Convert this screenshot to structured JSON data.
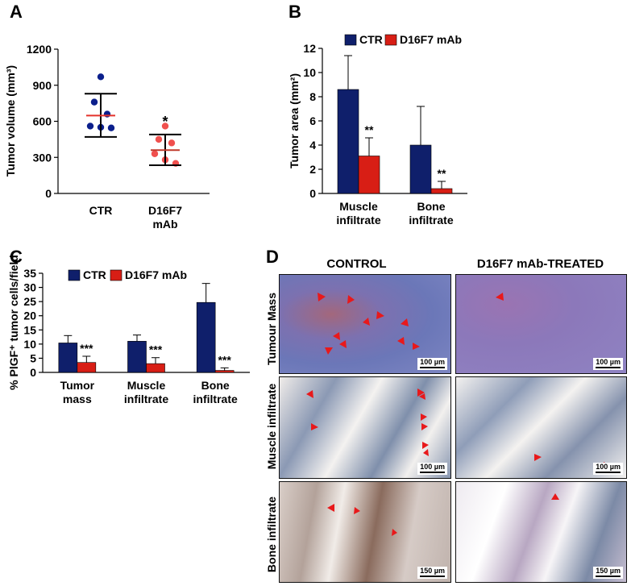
{
  "panels": [
    {
      "letter": "A"
    },
    {
      "letter": "B"
    },
    {
      "letter": "C"
    },
    {
      "letter": "D"
    }
  ],
  "chart_data": [
    {
      "id": "A",
      "type": "scatter",
      "ylabel": "Tumor volume (mm³)",
      "ylim": [
        0,
        1200
      ],
      "yticks": [
        "0",
        "300",
        "600",
        "900",
        "1200"
      ],
      "groups": [
        {
          "name": "CTR",
          "color": "#0b1f8c",
          "points": [
            970,
            760,
            660,
            560,
            550,
            545
          ],
          "mean": 648,
          "upper": 830,
          "lower": 470,
          "sig": ""
        },
        {
          "name": "D16F7\nmAb",
          "color": "#f0504e",
          "points": [
            560,
            450,
            420,
            330,
            280,
            250
          ],
          "mean": 360,
          "upper": 490,
          "lower": 235,
          "sig": "*"
        }
      ]
    },
    {
      "id": "B",
      "type": "bar",
      "ylabel": "Tumor area (mm²)",
      "ylim": [
        0,
        12
      ],
      "yticks": [
        "0",
        "2",
        "4",
        "6",
        "8",
        "10",
        "12"
      ],
      "categories": [
        "Muscle\ninfiltrate",
        "Bone\ninfiltrate"
      ],
      "series": [
        {
          "name": "CTR",
          "color": "#0f1f6b",
          "values": [
            8.6,
            4.0
          ],
          "errors": [
            2.8,
            3.2
          ],
          "sig": [
            "",
            ""
          ]
        },
        {
          "name": "D16F7 mAb",
          "color": "#d81e15",
          "values": [
            3.1,
            0.4
          ],
          "errors": [
            1.5,
            0.6
          ],
          "sig": [
            "**",
            "**"
          ]
        }
      ],
      "legend": "top"
    },
    {
      "id": "C",
      "type": "bar",
      "ylabel": "% PlGF⁺ tumor cells/field",
      "ylim": [
        0,
        35
      ],
      "yticks": [
        "0",
        "5",
        "10",
        "15",
        "20",
        "25",
        "30",
        "35"
      ],
      "categories": [
        "Tumor\nmass",
        "Muscle\ninfiltrate",
        "Bone\ninfiltrate"
      ],
      "series": [
        {
          "name": "CTR",
          "color": "#0f1f6b",
          "values": [
            10.4,
            11.0,
            24.7
          ],
          "errors": [
            2.6,
            2.2,
            6.7
          ],
          "sig": [
            "",
            "",
            ""
          ]
        },
        {
          "name": "D16F7 mAb",
          "color": "#d81e15",
          "values": [
            3.5,
            3.1,
            0.7
          ],
          "errors": [
            2.2,
            2.1,
            0.9
          ],
          "sig": [
            "***",
            "***",
            "***"
          ]
        }
      ],
      "legend": "top"
    }
  ],
  "micrographs": {
    "column_headers": [
      "CONTROL",
      "D16F7 mAb-TREATED"
    ],
    "row_labels": [
      "Tumour Mass",
      "Muscle infiltrate",
      "Bone infiltrate"
    ],
    "scale_bars": [
      [
        "100 µm",
        "100 µm"
      ],
      [
        "100 µm",
        "100 µm"
      ],
      [
        "150 µm",
        "150 µm"
      ]
    ],
    "arrow_color": "#e8191b"
  }
}
